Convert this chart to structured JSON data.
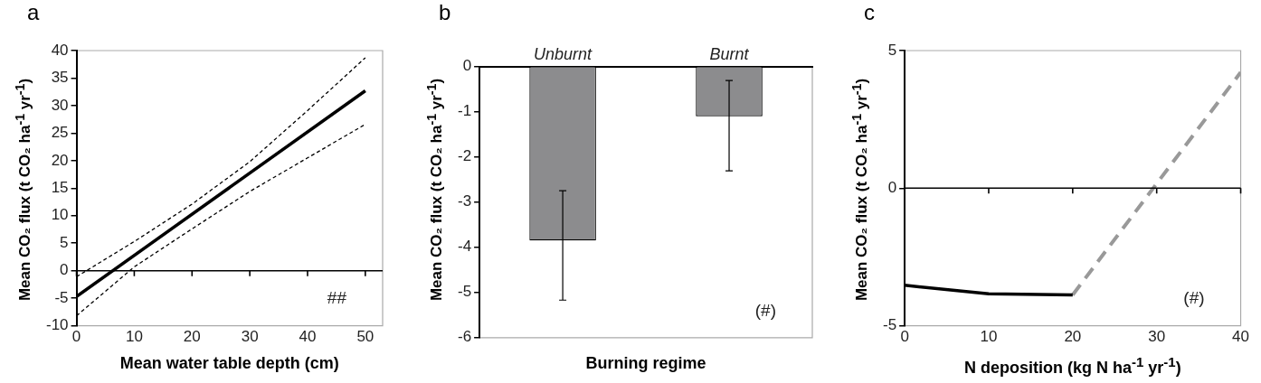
{
  "chart_data": [
    {
      "type": "line",
      "title": "a",
      "xlabel": "Mean water table depth (cm)",
      "ylabel": "Mean CO₂ flux (t CO₂ ha$^{-1}$ yr$^{-1}$)",
      "xlim": [
        0,
        53
      ],
      "xticks": [
        0,
        10,
        20,
        30,
        40,
        50
      ],
      "ylim": [
        -10,
        40
      ],
      "yticks": [
        -10,
        -5,
        0,
        5,
        10,
        15,
        20,
        25,
        30,
        35,
        40
      ],
      "grid": false,
      "marker": "none",
      "series": [
        {
          "color": "#000000",
          "x": [
            0,
            50
          ],
          "values": [
            -4.7,
            32.7
          ],
          "line_style": "solid"
        },
        {
          "color": "#000000",
          "x": [
            0,
            10,
            20,
            30,
            40,
            50
          ],
          "values": [
            -1.1,
            5.3,
            12.1,
            19.8,
            29.1,
            38.7
          ],
          "line_style": "dashed"
        },
        {
          "color": "#000000",
          "x": [
            0,
            10,
            20,
            30,
            40,
            50
          ],
          "values": [
            -8.2,
            0.7,
            7.6,
            14.4,
            20.5,
            26.6
          ],
          "line_style": "dashed"
        }
      ],
      "ref_lines": [
        {
          "axis": "y",
          "value": 0,
          "color": "#000000"
        }
      ],
      "annotations": [
        "##"
      ]
    },
    {
      "type": "bar",
      "title": "b",
      "xlabel": "Burning regime",
      "ylabel": "Mean CO₂ flux (t CO₂ ha$^{-1}$ yr$^{-1}$)",
      "categories": [
        "Unburnt",
        "Burnt"
      ],
      "values": [
        -3.85,
        -1.1
      ],
      "color": "#8c8c8e",
      "errors": [
        [
          -5.17,
          -2.75
        ],
        [
          -2.31,
          -0.31
        ]
      ],
      "ylim": [
        -6,
        0
      ],
      "yticks": [
        -6,
        -5,
        -4,
        -3,
        -2,
        -1,
        0
      ],
      "grid": false,
      "annotations": [
        "(#)"
      ]
    },
    {
      "type": "line",
      "title": "c",
      "xlabel": "N deposition (kg N ha$^{-1}$ yr$^{-1}$)",
      "ylabel": "Mean CO₂ flux (t CO₂ ha$^{-1}$ yr$^{-1}$)",
      "xlim": [
        0,
        40
      ],
      "xticks": [
        0,
        10,
        20,
        30,
        40
      ],
      "ylim": [
        -5,
        5
      ],
      "yticks": [
        -5,
        0,
        5
      ],
      "grid": false,
      "marker": "none",
      "series": [
        {
          "color": "#000000",
          "x": [
            0,
            10,
            20
          ],
          "values": [
            -3.53,
            -3.84,
            -3.88
          ],
          "line_style": "solid"
        },
        {
          "color": "#999999",
          "x": [
            20,
            40
          ],
          "values": [
            -3.88,
            4.21
          ],
          "line_style": "dashed"
        }
      ],
      "ref_lines": [
        {
          "axis": "y",
          "value": 0,
          "color": "#000000"
        }
      ],
      "annotations": [
        "(#)"
      ]
    }
  ]
}
